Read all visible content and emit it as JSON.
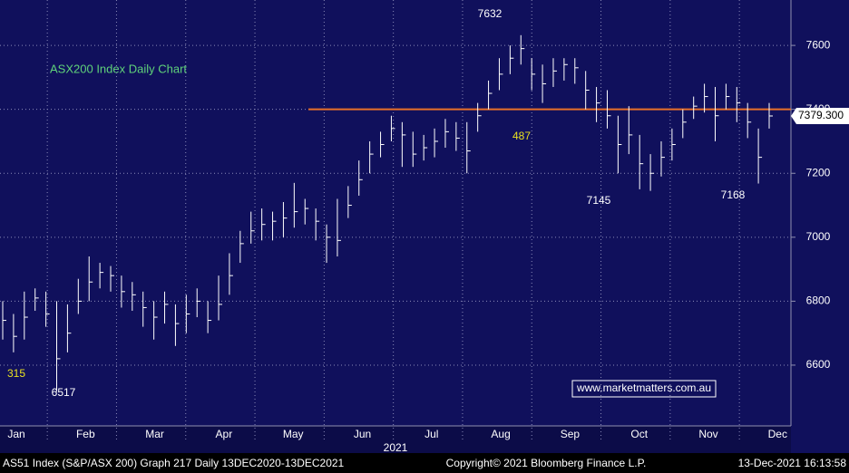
{
  "chart_data": {
    "type": "ohlc",
    "title": "ASX200 Index Daily Chart",
    "categories": [
      "Jan",
      "Feb",
      "Mar",
      "Apr",
      "May",
      "Jun",
      "Jul",
      "Aug",
      "Sep",
      "Oct",
      "Nov",
      "Dec"
    ],
    "x_axis_label": "2021",
    "series": [
      {
        "name": "AS51 Index",
        "color": "#ffffff",
        "high": [
          6800,
          6760,
          6830,
          6840,
          6830,
          6800,
          6790,
          6870,
          6940,
          6920,
          6910,
          6880,
          6860,
          6830,
          6800,
          6830,
          6790,
          6820,
          6840,
          6800,
          6880,
          6950,
          7020,
          7080,
          7090,
          7080,
          7110,
          7170,
          7120,
          7090,
          7040,
          7120,
          7160,
          7240,
          7300,
          7330,
          7380,
          7360,
          7330,
          7320,
          7340,
          7370,
          7360,
          7360,
          7420,
          7490,
          7560,
          7600,
          7632,
          7560,
          7540,
          7560,
          7560,
          7560,
          7520,
          7470,
          7460,
          7380,
          7410,
          7320,
          7260,
          7300,
          7340,
          7400,
          7440,
          7480,
          7470,
          7480,
          7470,
          7420,
          7340,
          7420
        ],
        "low": [
          6680,
          6640,
          6680,
          6770,
          6720,
          6517,
          6640,
          6760,
          6800,
          6840,
          6830,
          6780,
          6770,
          6720,
          6680,
          6730,
          6660,
          6700,
          6750,
          6700,
          6740,
          6820,
          6920,
          6980,
          6990,
          6990,
          7000,
          7030,
          7040,
          6990,
          6920,
          6940,
          7060,
          7130,
          7200,
          7250,
          7300,
          7220,
          7220,
          7240,
          7250,
          7280,
          7270,
          7200,
          7330,
          7400,
          7460,
          7510,
          7540,
          7460,
          7420,
          7470,
          7490,
          7480,
          7400,
          7360,
          7340,
          7200,
          7260,
          7150,
          7145,
          7190,
          7240,
          7310,
          7370,
          7390,
          7300,
          7400,
          7360,
          7310,
          7168,
          7340
        ],
        "close": [
          6740,
          6690,
          6750,
          6810,
          6760,
          6620,
          6700,
          6800,
          6860,
          6890,
          6880,
          6830,
          6820,
          6780,
          6750,
          6790,
          6730,
          6760,
          6800,
          6740,
          6790,
          6880,
          6980,
          7020,
          7040,
          7050,
          7060,
          7080,
          7090,
          7050,
          7000,
          6990,
          7100,
          7180,
          7260,
          7290,
          7340,
          7320,
          7260,
          7280,
          7300,
          7330,
          7310,
          7270,
          7380,
          7450,
          7510,
          7560,
          7590,
          7510,
          7480,
          7520,
          7540,
          7530,
          7460,
          7420,
          7380,
          7290,
          7320,
          7230,
          7200,
          7250,
          7290,
          7360,
          7410,
          7440,
          7380,
          7440,
          7420,
          7360,
          7250,
          7379.3
        ]
      }
    ],
    "last_price": {
      "value": 7379.3,
      "label": "7379.300"
    },
    "resistance": {
      "value": 7400,
      "color": "#e8702a"
    },
    "ylim": [
      6410,
      7742
    ],
    "yticks": [
      6600,
      6800,
      7000,
      7200,
      7400,
      7600
    ],
    "grid": true,
    "annotations": [
      "7632",
      "7145",
      "7168",
      "6517",
      "315",
      "487"
    ],
    "watermark": "www.marketmatters.com.au",
    "footer": {
      "left": "AS51 Index (S&P/ASX 200) Graph 217  Daily 13DEC2020-13DEC2021",
      "center": "Copyright© 2021 Bloomberg Finance L.P.",
      "right": "13-Dec-2021 16:13:58"
    }
  }
}
